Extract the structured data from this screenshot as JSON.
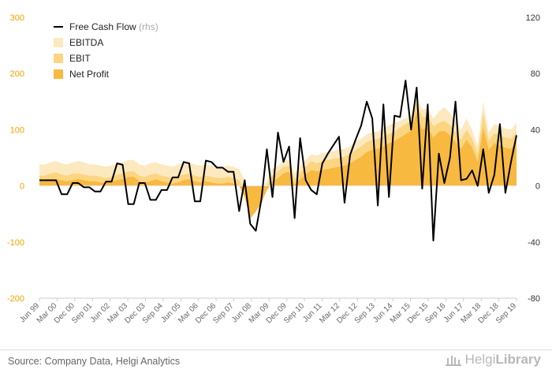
{
  "chart_data": {
    "type": "area",
    "series": [
      {
        "name": "Free Cash Flow",
        "unit_suffix": "(rhs)",
        "kind": "line",
        "axis": "right",
        "color": "#000000",
        "values": [
          4,
          4,
          4,
          4,
          -6,
          -6,
          2,
          2,
          -1,
          -1,
          -4,
          -4,
          3,
          3,
          16,
          15,
          -13,
          -13,
          2,
          2,
          -10,
          -10,
          -3,
          -3,
          6,
          6,
          17,
          16,
          -11,
          -11,
          18,
          17,
          13,
          13,
          10,
          10,
          -18,
          4,
          -27,
          -32,
          -10,
          26,
          -8,
          38,
          17,
          28,
          -23,
          34,
          4,
          -3,
          -6,
          16,
          23,
          29,
          35,
          -12,
          22,
          33,
          43,
          60,
          48,
          -14,
          58,
          -8,
          50,
          49,
          75,
          40,
          70,
          -2,
          58,
          -39,
          23,
          2,
          20,
          60,
          4,
          5,
          11,
          0,
          26,
          -5,
          8,
          44,
          -5,
          17,
          36
        ]
      },
      {
        "name": "EBITDA",
        "kind": "area",
        "axis": "left",
        "color": "#fde9bf",
        "values": [
          38,
          38,
          42,
          44,
          40,
          38,
          42,
          44,
          42,
          38,
          38,
          36,
          34,
          36,
          40,
          42,
          46,
          46,
          38,
          36,
          40,
          42,
          38,
          36,
          34,
          38,
          40,
          42,
          38,
          36,
          38,
          36,
          34,
          34,
          36,
          34,
          30,
          10,
          -35,
          -28,
          -10,
          10,
          30,
          36,
          44,
          46,
          22,
          36,
          46,
          56,
          54,
          58,
          60,
          62,
          65,
          66,
          70,
          80,
          84,
          92,
          96,
          96,
          102,
          108,
          112,
          116,
          120,
          124,
          160,
          136,
          138,
          120,
          132,
          140,
          130,
          115,
          100,
          120,
          100,
          70,
          150,
          95,
          110,
          106,
          102,
          100,
          112
        ]
      },
      {
        "name": "EBIT",
        "kind": "area",
        "axis": "left",
        "color": "#fbd580",
        "values": [
          18,
          18,
          22,
          24,
          20,
          18,
          22,
          22,
          20,
          18,
          18,
          16,
          14,
          16,
          20,
          22,
          26,
          26,
          18,
          16,
          20,
          22,
          18,
          16,
          14,
          18,
          20,
          22,
          18,
          16,
          18,
          16,
          14,
          14,
          16,
          14,
          10,
          -8,
          -50,
          -40,
          -22,
          0,
          18,
          26,
          34,
          36,
          12,
          24,
          34,
          44,
          40,
          44,
          46,
          48,
          50,
          52,
          56,
          64,
          70,
          78,
          82,
          84,
          88,
          92,
          96,
          104,
          110,
          116,
          148,
          122,
          124,
          106,
          112,
          116,
          108,
          96,
          82,
          100,
          84,
          56,
          130,
          80,
          94,
          90,
          86,
          84,
          96
        ]
      },
      {
        "name": "Net Profit",
        "kind": "area",
        "axis": "left",
        "color": "#f8b940",
        "values": [
          8,
          8,
          10,
          12,
          10,
          8,
          10,
          12,
          10,
          8,
          8,
          6,
          6,
          8,
          10,
          12,
          16,
          16,
          8,
          6,
          8,
          12,
          8,
          6,
          4,
          6,
          10,
          12,
          8,
          6,
          8,
          6,
          4,
          4,
          6,
          4,
          0,
          -20,
          -58,
          -46,
          -30,
          -8,
          6,
          14,
          22,
          26,
          2,
          12,
          20,
          28,
          26,
          28,
          30,
          32,
          34,
          36,
          40,
          46,
          52,
          60,
          64,
          66,
          70,
          76,
          80,
          86,
          92,
          98,
          130,
          100,
          104,
          86,
          96,
          98,
          90,
          78,
          66,
          82,
          68,
          42,
          104,
          64,
          76,
          72,
          68,
          66,
          78
        ]
      }
    ],
    "left_axis": {
      "ticks": [
        "300",
        "200",
        "100",
        "0",
        "-100",
        "-200"
      ],
      "ylim": [
        -200,
        300
      ],
      "color": "#f0a500"
    },
    "right_axis": {
      "ticks": [
        "120",
        "80",
        "40",
        "0",
        "-40",
        "-80"
      ],
      "ylim": [
        -80,
        120
      ]
    },
    "x_tick_labels": [
      "Jun 99",
      "Mar 00",
      "Dec 00",
      "Sep 01",
      "Jun 02",
      "Mar 03",
      "Dec 03",
      "Sep 04",
      "Jun 05",
      "Mar 06",
      "Dec 06",
      "Sep 07",
      "Jun 08",
      "Mar 09",
      "Dec 09",
      "Sep 10",
      "Jun 11",
      "Mar 12",
      "Dec 12",
      "Sep 13",
      "Jun 14",
      "Mar 15",
      "Dec 15",
      "Sep 16",
      "Jun 17",
      "Mar 18",
      "Dec 18",
      "Sep 19"
    ],
    "grid": false,
    "legend_position": "top-left"
  },
  "footer": {
    "source": "Source: Company Data, Helgi Analytics",
    "logo_light": "Helgi",
    "logo_bold": "Library"
  }
}
